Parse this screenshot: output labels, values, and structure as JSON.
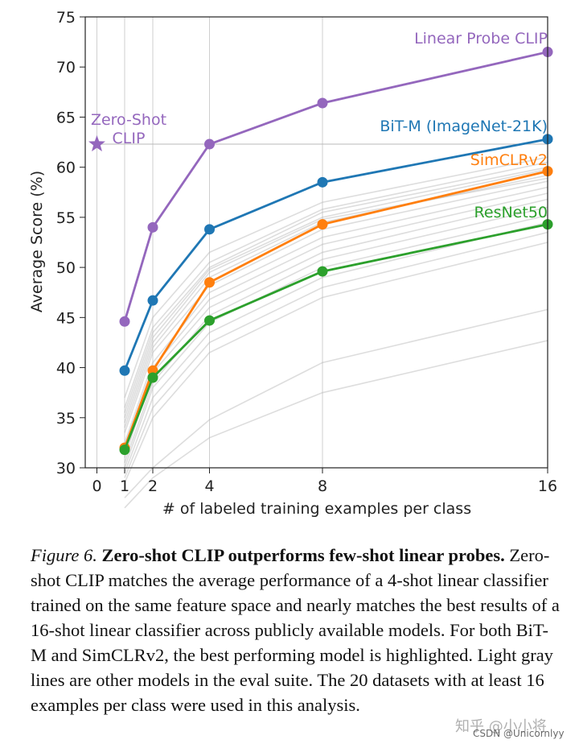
{
  "chart_data": {
    "type": "line",
    "xlabel": "# of labeled training examples per class",
    "ylabel": "Average Score (%)",
    "x_ticks": [
      0,
      1,
      2,
      4,
      8,
      16
    ],
    "y_ticks": [
      30,
      35,
      40,
      45,
      50,
      55,
      60,
      65,
      70,
      75
    ],
    "ylim": [
      30,
      75
    ],
    "grid": true,
    "series": [
      {
        "name": "Linear Probe CLIP",
        "color": "#9467bd",
        "x": [
          1,
          2,
          4,
          8,
          16
        ],
        "values": [
          44.6,
          54.0,
          62.3,
          66.4,
          71.5
        ]
      },
      {
        "name": "BiT-M (ImageNet-21K)",
        "color": "#1f77b4",
        "x": [
          1,
          2,
          4,
          8,
          16
        ],
        "values": [
          39.7,
          46.7,
          53.8,
          58.5,
          62.8
        ]
      },
      {
        "name": "SimCLRv2",
        "color": "#ff7f0e",
        "x": [
          1,
          2,
          4,
          8,
          16
        ],
        "values": [
          32.0,
          39.7,
          48.5,
          54.3,
          59.6
        ]
      },
      {
        "name": "ResNet50",
        "color": "#2ca02c",
        "x": [
          1,
          2,
          4,
          8,
          16
        ],
        "values": [
          31.8,
          39.0,
          44.7,
          49.6,
          54.3
        ]
      }
    ],
    "zero_shot": {
      "label_line1": "Zero-Shot",
      "label_line2": "CLIP",
      "x": 0,
      "value": 62.3,
      "color": "#9467bd"
    },
    "gray_lines": [
      {
        "x": [
          1,
          2,
          4,
          8,
          16
        ],
        "values": [
          37.0,
          45.0,
          51.5,
          56.5,
          61.0
        ]
      },
      {
        "x": [
          1,
          2,
          4,
          8,
          16
        ],
        "values": [
          36.0,
          44.0,
          50.5,
          55.8,
          60.5
        ]
      },
      {
        "x": [
          1,
          2,
          4,
          8,
          16
        ],
        "values": [
          35.0,
          43.0,
          49.8,
          55.0,
          59.8
        ]
      },
      {
        "x": [
          1,
          2,
          4,
          8,
          16
        ],
        "values": [
          34.0,
          42.0,
          49.0,
          54.5,
          59.2
        ]
      },
      {
        "x": [
          1,
          2,
          4,
          8,
          16
        ],
        "values": [
          33.5,
          41.5,
          48.2,
          53.8,
          58.6
        ]
      },
      {
        "x": [
          1,
          2,
          4,
          8,
          16
        ],
        "values": [
          32.5,
          40.5,
          47.5,
          53.0,
          58.0
        ]
      },
      {
        "x": [
          1,
          2,
          4,
          8,
          16
        ],
        "values": [
          32.0,
          40.0,
          46.8,
          52.3,
          57.4
        ]
      },
      {
        "x": [
          1,
          2,
          4,
          8,
          16
        ],
        "values": [
          31.0,
          39.5,
          46.0,
          51.5,
          56.8
        ]
      },
      {
        "x": [
          1,
          2,
          4,
          8,
          16
        ],
        "values": [
          30.5,
          38.5,
          45.2,
          50.8,
          56.0
        ]
      },
      {
        "x": [
          1,
          2,
          4,
          8,
          16
        ],
        "values": [
          30.0,
          38.0,
          44.5,
          50.0,
          55.2
        ]
      },
      {
        "x": [
          1,
          2,
          4,
          8,
          16
        ],
        "values": [
          29.5,
          37.0,
          43.5,
          49.0,
          54.5
        ]
      },
      {
        "x": [
          1,
          2,
          4,
          8,
          16
        ],
        "values": [
          29.0,
          36.0,
          42.5,
          48.0,
          53.5
        ]
      },
      {
        "x": [
          1,
          2,
          4,
          8,
          16
        ],
        "values": [
          28.5,
          35.0,
          41.5,
          47.0,
          52.5
        ]
      },
      {
        "x": [
          1,
          2,
          4,
          8,
          16
        ],
        "values": [
          35.5,
          43.5,
          50.0,
          55.5,
          60.0
        ]
      },
      {
        "x": [
          1,
          2,
          4,
          8,
          16
        ],
        "values": [
          34.5,
          42.5,
          49.5,
          54.8,
          58.9
        ]
      },
      {
        "x": [
          1,
          2,
          4,
          8,
          16
        ],
        "values": [
          27.0,
          30.0,
          34.8,
          40.5,
          45.8
        ]
      },
      {
        "x": [
          1,
          2,
          4,
          8,
          16
        ],
        "values": [
          26.0,
          29.0,
          33.0,
          37.5,
          42.7
        ]
      }
    ]
  },
  "caption": {
    "figure_number": "Figure 6.",
    "title": "Zero-shot CLIP outperforms few-shot linear probes.",
    "body": "Zero-shot CLIP matches the average performance of a 4-shot linear classifier trained on the same feature space and nearly matches the best results of a 16-shot linear classifier across publicly available models. For both BiT-M and SimCLRv2, the best performing model is highlighted. Light gray lines are other models in the eval suite. The 20 datasets with at least 16 examples per class were used in this analysis."
  },
  "watermark": {
    "line1": "知乎 @小小将",
    "line2": "CSDN @Unicornlyy"
  }
}
